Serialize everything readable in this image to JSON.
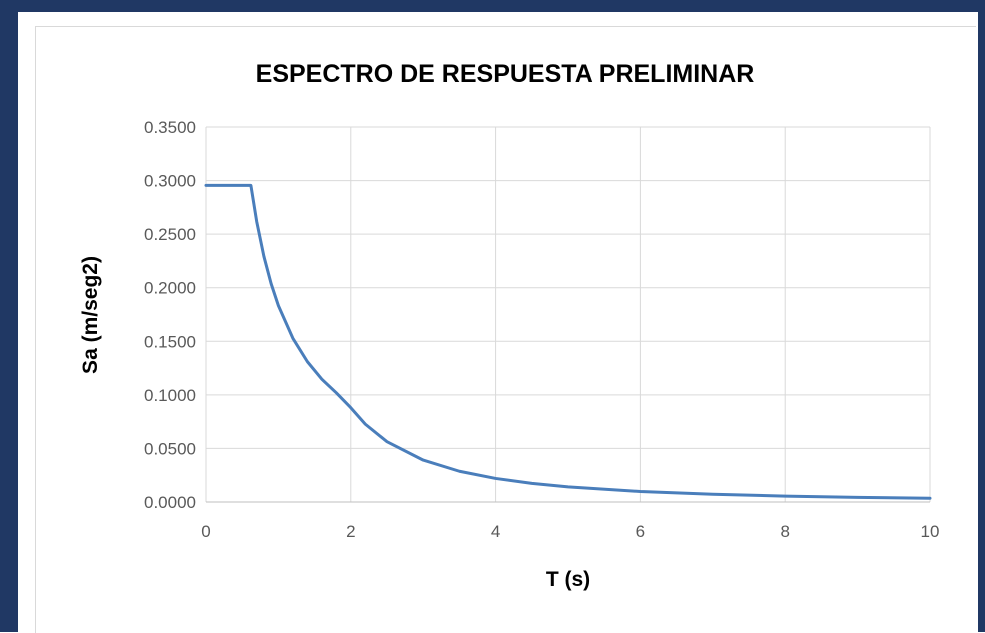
{
  "chart_data": {
    "type": "line",
    "title": "ESPECTRO DE RESPUESTA PRELIMINAR",
    "xlabel": "T (s)",
    "ylabel": "Sa (m/seg2)",
    "xlim": [
      0,
      10
    ],
    "ylim": [
      0,
      0.35
    ],
    "xticks": [
      "0",
      "2",
      "4",
      "6",
      "8",
      "10"
    ],
    "yticks": [
      "0.0000",
      "0.0500",
      "0.1000",
      "0.1500",
      "0.2000",
      "0.2500",
      "0.3000",
      "0.3500"
    ],
    "grid": true,
    "legend": "none",
    "series": [
      {
        "color": "#4a7ebb",
        "x": [
          0,
          0.6,
          0.62,
          0.7,
          0.8,
          0.9,
          1.0,
          1.2,
          1.4,
          1.6,
          1.8,
          2.0,
          2.2,
          2.5,
          3.0,
          3.5,
          4.0,
          4.5,
          5.0,
          6.0,
          7.0,
          8.0,
          9.0,
          10.0
        ],
        "y": [
          0.2955,
          0.2955,
          0.2955,
          0.2619,
          0.2292,
          0.2037,
          0.1833,
          0.1528,
          0.131,
          0.1146,
          0.1019,
          0.088,
          0.0727,
          0.0563,
          0.0391,
          0.0287,
          0.022,
          0.0174,
          0.0141,
          0.0098,
          0.0072,
          0.0055,
          0.0043,
          0.0035
        ]
      }
    ]
  }
}
